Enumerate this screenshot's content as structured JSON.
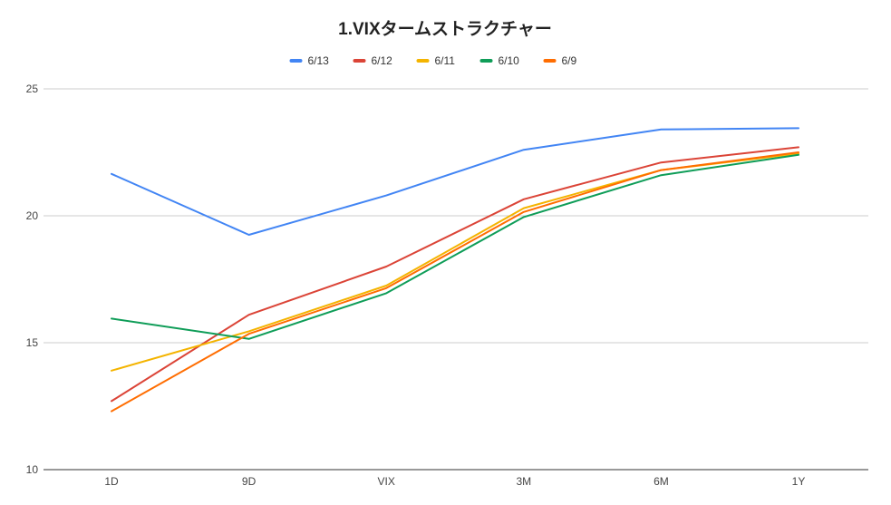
{
  "chart_data": {
    "type": "line",
    "title": "1.VIXタームストラクチャー",
    "xlabel": "",
    "ylabel": "",
    "categories": [
      "1D",
      "9D",
      "VIX",
      "3M",
      "6M",
      "1Y"
    ],
    "ylim": [
      10,
      25
    ],
    "yticks": [
      10,
      15,
      20,
      25
    ],
    "grid": true,
    "legend_position": "top",
    "series": [
      {
        "name": "6/13",
        "color": "#4285f4",
        "values": [
          21.65,
          19.25,
          20.8,
          22.6,
          23.4,
          23.45
        ]
      },
      {
        "name": "6/12",
        "color": "#db4437",
        "values": [
          12.7,
          16.1,
          18.0,
          20.65,
          22.1,
          22.7
        ]
      },
      {
        "name": "6/11",
        "color": "#f4b400",
        "values": [
          13.9,
          15.45,
          17.25,
          20.3,
          21.8,
          22.45
        ]
      },
      {
        "name": "6/10",
        "color": "#0f9d58",
        "values": [
          15.95,
          15.15,
          16.95,
          19.95,
          21.6,
          22.4
        ]
      },
      {
        "name": "6/9",
        "color": "#ff6d01",
        "values": [
          12.3,
          15.35,
          17.15,
          20.15,
          21.8,
          22.5
        ]
      }
    ]
  }
}
